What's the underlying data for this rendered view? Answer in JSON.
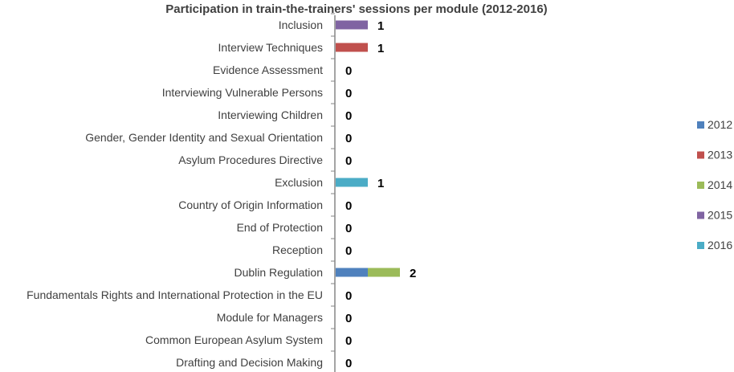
{
  "chart_data": {
    "type": "bar",
    "orientation": "horizontal",
    "stacked": true,
    "title": "Participation in train-the-trainers' sessions per module (2012-2016)",
    "categories": [
      "Inclusion",
      "Interview Techniques",
      "Evidence Assessment",
      "Interviewing Vulnerable Persons",
      "Interviewing Children",
      "Gender, Gender Identity and Sexual Orientation",
      "Asylum Procedures Directive",
      "Exclusion",
      "Country of Origin Information",
      "End of Protection",
      "Reception",
      "Dublin Regulation",
      "Fundamentals Rights and International Protection in the EU",
      "Module for Managers",
      "Common European Asylum System",
      "Drafting and Decision Making"
    ],
    "series": [
      {
        "name": "2012",
        "color": "#4F81BD",
        "values": [
          0,
          0,
          0,
          0,
          0,
          0,
          0,
          0,
          0,
          0,
          0,
          1,
          0,
          0,
          0,
          0
        ]
      },
      {
        "name": "2013",
        "color": "#C0504D",
        "values": [
          0,
          1,
          0,
          0,
          0,
          0,
          0,
          0,
          0,
          0,
          0,
          0,
          0,
          0,
          0,
          0
        ]
      },
      {
        "name": "2014",
        "color": "#9BBB59",
        "values": [
          0,
          0,
          0,
          0,
          0,
          0,
          0,
          0,
          0,
          0,
          0,
          1,
          0,
          0,
          0,
          0
        ]
      },
      {
        "name": "2015",
        "color": "#8064A2",
        "values": [
          1,
          0,
          0,
          0,
          0,
          0,
          0,
          0,
          0,
          0,
          0,
          0,
          0,
          0,
          0,
          0
        ]
      },
      {
        "name": "2016",
        "color": "#4BACC6",
        "values": [
          0,
          0,
          0,
          0,
          0,
          0,
          0,
          1,
          0,
          0,
          0,
          0,
          0,
          0,
          0,
          0
        ]
      }
    ],
    "totals": [
      "1",
      "1",
      "0",
      "0",
      "0",
      "0",
      "0",
      "1",
      "0",
      "0",
      "0",
      "2",
      "0",
      "0",
      "0",
      "0"
    ],
    "xlim": [
      0,
      20
    ],
    "grid": false,
    "legend_position": "right"
  }
}
